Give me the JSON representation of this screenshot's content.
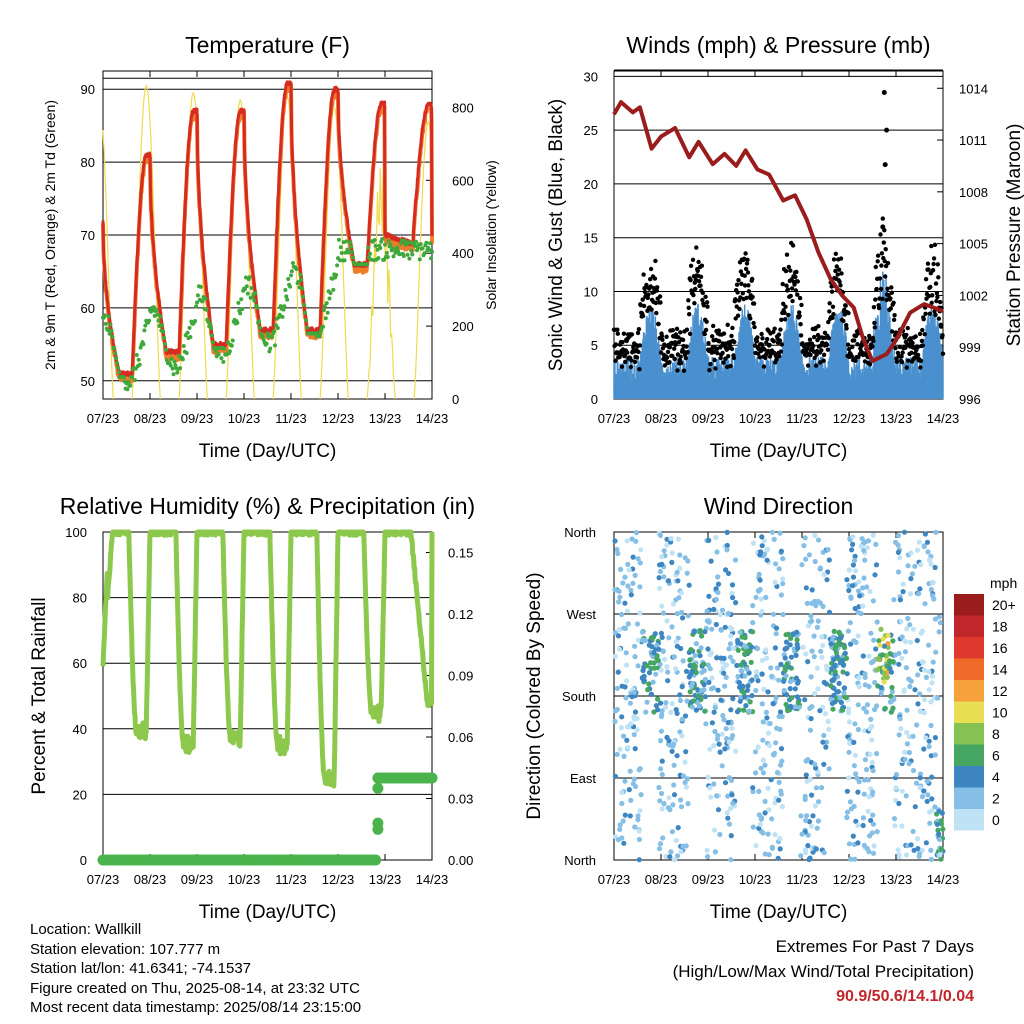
{
  "x_tick_labels": [
    "07/23",
    "08/23",
    "09/23",
    "10/23",
    "11/23",
    "12/23",
    "13/23",
    "14/23"
  ],
  "charts": [
    {
      "type": "line",
      "title": "Temperature (F)",
      "xlabel": "Time (Day/UTC)",
      "ylabel": "2m & 9m T (Red, Orange) & 2m Td (Green)",
      "ylabel_right": "Solar Insolation (Yellow)",
      "ylim": [
        47.5,
        92.5
      ],
      "yticks": [
        50,
        60,
        70,
        80,
        90
      ],
      "ylim_right": [
        0,
        900
      ],
      "yticks_right": [
        0,
        200,
        400,
        600,
        800
      ],
      "daily_high_2m": [
        81,
        87,
        87,
        90.9,
        90,
        88
      ],
      "daily_low_2m": [
        51,
        54,
        55,
        57,
        57,
        66
      ],
      "series": [
        {
          "name": "2m T",
          "color": "#d62b22"
        },
        {
          "name": "9m T",
          "color": "#f07b2a"
        },
        {
          "name": "2m Td",
          "color": "#3fa83a"
        },
        {
          "name": "Solar Insolation",
          "color": "#f0da4e"
        }
      ]
    },
    {
      "type": "scatter",
      "title": "Winds (mph) & Pressure (mb)",
      "xlabel": "Time (Day/UTC)",
      "ylabel": "Sonic Wind & Gust (Blue, Black)",
      "ylabel_right": "Station Pressure (Maroon)",
      "ylim": [
        0,
        30.5
      ],
      "yticks": [
        0,
        5,
        10,
        15,
        20,
        25,
        30
      ],
      "ylim_right": [
        996,
        1015
      ],
      "yticks_right": [
        996,
        999,
        1002,
        1005,
        1008,
        1011,
        1014
      ],
      "pressure_points": [
        [
          0,
          1012.5
        ],
        [
          0.15,
          1013.2
        ],
        [
          0.4,
          1012.6
        ],
        [
          0.55,
          1012.9
        ],
        [
          0.8,
          1010.5
        ],
        [
          1.0,
          1011.2
        ],
        [
          1.3,
          1011.7
        ],
        [
          1.6,
          1010.0
        ],
        [
          1.8,
          1010.9
        ],
        [
          2.1,
          1009.6
        ],
        [
          2.35,
          1010.2
        ],
        [
          2.6,
          1009.5
        ],
        [
          2.8,
          1010.4
        ],
        [
          3.05,
          1009.3
        ],
        [
          3.3,
          1009.0
        ],
        [
          3.6,
          1007.5
        ],
        [
          3.85,
          1007.8
        ],
        [
          4.1,
          1006.4
        ],
        [
          4.35,
          1004.5
        ],
        [
          4.6,
          1003.0
        ],
        [
          4.85,
          1002.0
        ],
        [
          5.1,
          1001.3
        ],
        [
          5.3,
          999.5
        ],
        [
          5.5,
          998.2
        ],
        [
          5.8,
          998.6
        ],
        [
          6.0,
          999.4
        ],
        [
          6.3,
          1001.0
        ],
        [
          6.6,
          1001.5
        ],
        [
          7.0,
          1001.1
        ]
      ],
      "series": [
        {
          "name": "Sonic Wind",
          "color": "#4a90cf"
        },
        {
          "name": "Gust",
          "color": "#000000"
        },
        {
          "name": "Station Pressure",
          "color": "#9b1c1c"
        }
      ]
    },
    {
      "type": "line",
      "title": "Relative Humidity (%) & Precipitation (in)",
      "xlabel": "Time (Day/UTC)",
      "ylabel": "Percent & Total Rainfall",
      "ylim": [
        0,
        100
      ],
      "yticks": [
        0,
        20,
        40,
        60,
        80,
        100
      ],
      "ylim_right": [
        0,
        0.16
      ],
      "yticks_right": [
        "0.00",
        "0.03",
        "0.06",
        "0.09",
        "0.12",
        "0.15"
      ],
      "daily_min_rh": [
        39,
        35,
        37,
        35,
        25,
        45
      ],
      "total_precip": 0.04,
      "series": [
        {
          "name": "Relative Humidity",
          "color": "#8cc84b"
        },
        {
          "name": "Total Precipitation",
          "color": "#4bb34b"
        }
      ]
    },
    {
      "type": "scatter",
      "title": "Wind Direction",
      "xlabel": "Time (Day/UTC)",
      "ylabel": "Direction (Colored By Speed)",
      "yticks": [
        "North",
        "East",
        "South",
        "West",
        "North"
      ],
      "colorbar_label": "mph",
      "colorbar_levels": [
        "20+",
        "18",
        "16",
        "14",
        "12",
        "10",
        "8",
        "6",
        "4",
        "2",
        "0"
      ],
      "colorbar_colors": [
        "#9b1c1c",
        "#c0262b",
        "#e0392d",
        "#f06a2a",
        "#f6a23c",
        "#e8df55",
        "#85c251",
        "#44a660",
        "#3d86c1",
        "#86bfe6",
        "#bfe2f5"
      ]
    }
  ],
  "info": {
    "location": "Location: Wallkill",
    "elevation": "Station elevation: 107.777 m",
    "latlon": "Station lat/lon: 41.6341; -74.1537",
    "created": "Figure created on Thu, 2025-08-14, at 23:32 UTC",
    "timestamp": "Most recent data timestamp: 2025/08/14 23:15:00"
  },
  "extremes": {
    "title": "Extremes For Past 7 Days",
    "subtitle": "(High/Low/Max Wind/Total Precipitation)",
    "values": "90.9/50.6/14.1/0.04"
  }
}
